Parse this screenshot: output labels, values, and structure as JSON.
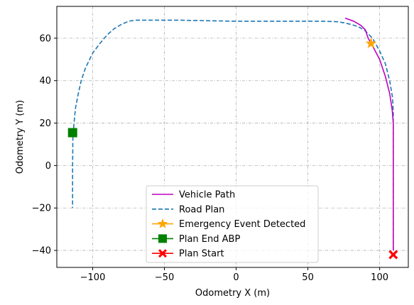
{
  "chart_data": {
    "type": "line",
    "xlabel": "Odometry X (m)",
    "ylabel": "Odometry Y (m)",
    "xlim": [
      -125,
      120
    ],
    "ylim": [
      -48,
      75
    ],
    "xticks": [
      -100,
      -50,
      0,
      50,
      100
    ],
    "yticks": [
      -40,
      -20,
      0,
      20,
      40,
      60
    ],
    "xtick_labels": [
      "−100",
      "−50",
      "0",
      "50",
      "100"
    ],
    "ytick_labels": [
      "−40",
      "−20",
      "0",
      "20",
      "40",
      "60"
    ],
    "grid": true,
    "legend_position": "lower center",
    "series": [
      {
        "name": "Vehicle Path",
        "kind": "line",
        "color": "#bf00bf",
        "style": "solid",
        "x": [
          76,
          82,
          87,
          90,
          92,
          95,
          100,
          104,
          107,
          108.8,
          109.5,
          109.5,
          109.5
        ],
        "y": [
          69.5,
          68,
          66,
          64,
          60,
          56.5,
          50,
          42,
          34,
          26,
          20,
          0,
          -40
        ]
      },
      {
        "name": "Road Plan",
        "kind": "line",
        "color": "#1f77b4",
        "style": "dashed",
        "x": [
          109.5,
          109.5,
          109.5,
          109,
          107,
          104,
          100,
          95,
          90,
          85,
          80,
          75,
          70,
          60,
          40,
          0,
          -40,
          -70,
          -75,
          -80,
          -85,
          -90,
          -95,
          -100,
          -105,
          -108,
          -110,
          -112,
          -113,
          -113.8,
          -114,
          -114,
          -114
        ],
        "y": [
          -40,
          0,
          25,
          32,
          40,
          48,
          54,
          60,
          63.5,
          65.5,
          66.5,
          67.3,
          67.8,
          68,
          68,
          68,
          68.5,
          68.5,
          68,
          66.5,
          64.5,
          61.5,
          57.5,
          53,
          46,
          40,
          34,
          27,
          20,
          13,
          0,
          -10,
          -20
        ]
      },
      {
        "name": "Emergency Event Detected",
        "kind": "marker",
        "marker": "star",
        "color": "#ffa500",
        "x": [
          94
        ],
        "y": [
          57.5
        ]
      },
      {
        "name": "Plan End ABP",
        "kind": "marker",
        "marker": "square",
        "color": "#008000",
        "x": [
          -114
        ],
        "y": [
          15.5
        ]
      },
      {
        "name": "Plan Start",
        "kind": "marker",
        "marker": "x",
        "color": "#ff0000",
        "x": [
          109.5
        ],
        "y": [
          -42
        ]
      }
    ]
  }
}
